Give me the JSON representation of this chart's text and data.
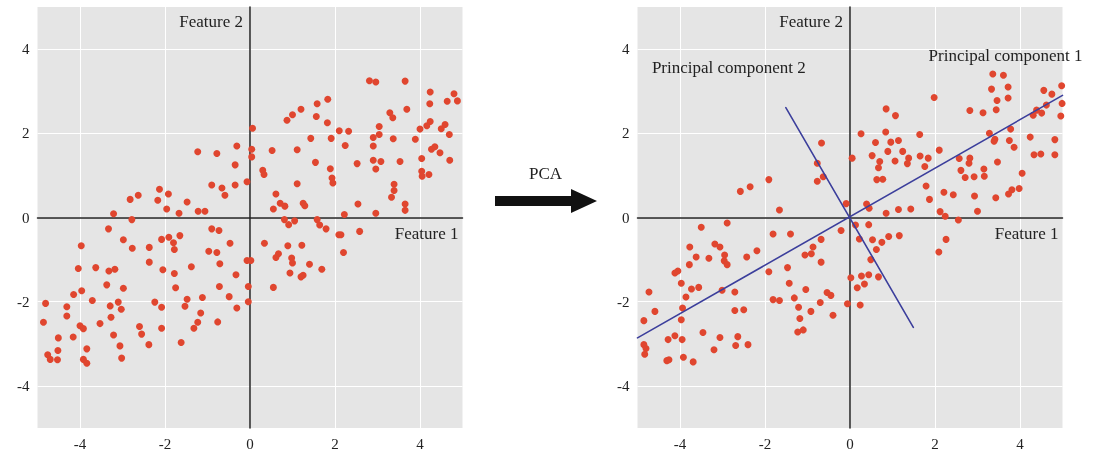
{
  "chart_data": [
    {
      "type": "scatter",
      "xlabel": "Feature 1",
      "ylabel": "Feature 2",
      "color": "#e0462f",
      "marker": "circle",
      "grid": true,
      "xlim": [
        -5,
        5
      ],
      "ylim": [
        -5,
        5
      ],
      "xticks": [
        -4,
        -2,
        0,
        2,
        4
      ],
      "yticks": [
        -4,
        -2,
        0,
        2,
        4
      ],
      "x": [
        -1.23,
        -0.78,
        -0.31,
        -0.35,
        -0.9,
        -0.66,
        -0.59,
        -0.35,
        -0.07,
        -2.13,
        -1.92,
        -2.17,
        -1.96,
        -1.67,
        -1.48,
        -1.22,
        -1.06,
        -2.82,
        -2.63,
        -3.21,
        -2.78,
        -3.33,
        -2.98,
        -2.77,
        -3.97,
        -4.04,
        -3.63,
        -3.32,
        -3.18,
        -3.37,
        -2.98,
        -2.37,
        -2.37,
        -2.08,
        -1.91,
        -1.8,
        -1.78,
        -1.65,
        -2.05,
        -1.78,
        -1.75,
        -1.38,
        -0.9,
        -0.73,
        -0.97,
        -0.78,
        -0.47,
        -0.71,
        -0.07,
        -0.33,
        -0.72,
        -0.04,
        -0.49,
        -0.04,
        -0.31,
        -1.48,
        -1.53,
        -1.12,
        -1.16,
        -1.23,
        -1.32,
        -0.76,
        -1.62,
        -2.24,
        -2.08,
        -2.08,
        -2.6,
        -2.55,
        -2.38,
        -3.06,
        -3.02,
        -3.1,
        -3.03,
        -3.29,
        -3.27,
        -3.21,
        -3.53,
        -3.71,
        -3.96,
        -4.15,
        -4.31,
        -4.31,
        -4.81,
        -4.86,
        -4.51,
        -4.16,
        -4.0,
        -3.92,
        -3.84,
        -4.52,
        -4.76,
        -4.7,
        -4.53,
        -3.92,
        -3.84,
        2.81,
        2.96,
        3.65,
        4.24,
        4.8,
        4.88,
        4.64,
        4.23,
        3.69,
        3.29,
        3.36,
        4.24,
        4.16,
        4.0,
        4.59,
        4.5,
        4.69,
        3.89,
        3.37,
        3.04,
        2.9,
        2.9,
        3.04,
        4.35,
        4.27,
        4.47,
        4.04,
        4.7,
        4.04,
        4.21,
        4.05,
        3.53,
        3.08,
        2.9,
        2.96,
        3.39,
        3.39,
        3.33,
        3.65,
        3.65,
        2.96,
        2.52,
        2.54,
        2.24,
        2.32,
        2.1,
        1.91,
        1.82,
        1.83,
        1.56,
        1.58,
        1.2,
        1.0,
        0.87,
        1.43,
        1.11,
        0.52,
        0.06,
        0.04,
        0.04,
        0.3,
        0.33,
        1.54,
        1.89,
        1.93,
        1.95,
        1.11,
        0.61,
        0.71,
        0.82,
        0.55,
        1.25,
        1.29,
        2.22,
        0.81,
        0.91,
        1.05,
        1.58,
        1.64,
        1.79,
        2.09,
        2.14,
        2.58,
        0.34,
        0.89,
        1.22,
        0.67,
        0.61,
        0.98,
        1.0,
        1.4,
        1.69,
        0.94,
        1.25,
        1.2,
        2.2,
        0.55,
        0.02
      ],
      "values": [
        1.56,
        1.52,
        1.7,
        1.25,
        0.77,
        0.7,
        0.53,
        0.77,
        0.85,
        0.67,
        0.56,
        0.41,
        0.2,
        0.1,
        0.37,
        0.15,
        0.15,
        0.43,
        0.53,
        0.09,
        -0.05,
        -0.27,
        -0.53,
        -0.73,
        -0.67,
        -1.21,
        -1.19,
        -1.27,
        -1.23,
        -1.6,
        -1.68,
        -0.71,
        -1.06,
        -0.52,
        -0.47,
        -0.6,
        -0.76,
        -0.43,
        -1.24,
        -1.33,
        -1.67,
        -1.17,
        -0.27,
        -0.31,
        -0.8,
        -0.83,
        -0.61,
        -1.1,
        -1.02,
        -1.36,
        -1.64,
        -1.64,
        -1.88,
        -2.0,
        -2.15,
        -1.94,
        -2.11,
        -1.9,
        -2.27,
        -2.49,
        -2.63,
        -2.48,
        -2.97,
        -2.01,
        -2.13,
        -2.63,
        -2.59,
        -2.77,
        -3.02,
        -3.05,
        -3.34,
        -2.01,
        -2.18,
        -2.1,
        -2.37,
        -2.79,
        -2.52,
        -1.97,
        -1.74,
        -1.83,
        -2.12,
        -2.34,
        -2.04,
        -2.49,
        -2.86,
        -2.84,
        -2.57,
        -2.64,
        -3.12,
        -3.16,
        -3.26,
        -3.37,
        -3.38,
        -3.37,
        -3.46,
        3.25,
        3.22,
        3.24,
        2.98,
        2.94,
        2.77,
        2.76,
        2.7,
        2.57,
        2.49,
        2.37,
        2.28,
        2.18,
        2.1,
        2.21,
        2.11,
        1.97,
        1.86,
        1.87,
        2.16,
        1.9,
        1.7,
        1.97,
        1.68,
        1.62,
        1.54,
        1.4,
        1.36,
        1.1,
        1.02,
        0.98,
        1.33,
        1.33,
        1.36,
        1.15,
        0.79,
        0.64,
        0.48,
        0.32,
        0.17,
        0.1,
        1.28,
        0.32,
        1.71,
        2.05,
        2.06,
        1.88,
        2.25,
        2.81,
        2.4,
        2.7,
        2.57,
        2.44,
        2.31,
        1.88,
        1.61,
        1.59,
        2.12,
        1.62,
        1.44,
        1.12,
        1.02,
        1.31,
        1.16,
        0.94,
        0.82,
        0.8,
        0.56,
        0.34,
        0.27,
        0.2,
        0.34,
        0.28,
        0.07,
        -0.05,
        -0.17,
        -0.08,
        -0.05,
        -0.18,
        -0.27,
        -0.41,
        -0.41,
        -0.33,
        -0.61,
        -0.67,
        -0.66,
        -0.86,
        -0.95,
        -0.96,
        -1.08,
        -1.11,
        -1.23,
        -1.32,
        -1.37,
        -1.41,
        -0.83,
        -1.66,
        -1.02
      ]
    },
    {
      "type": "scatter",
      "xlabel": "Feature 1",
      "ylabel": "Feature 2",
      "annotations": [
        "PCA"
      ],
      "marker": "circle",
      "grid": true,
      "xlim": [
        -5,
        5
      ],
      "ylim": [
        -5,
        5
      ],
      "xticks": [
        -4,
        -2,
        0,
        2,
        4
      ],
      "yticks": [
        -4,
        -2,
        0,
        2,
        4
      ],
      "series": [
        {
          "type": "scatter",
          "color": "#e0462f",
          "x": [
            -0.67,
            -0.77,
            -0.63,
            -0.77,
            -1.91,
            -2.35,
            -2.58,
            -1.66,
            -0.09,
            -0.21,
            -0.68,
            -0.87,
            -0.91,
            -1.06,
            -0.68,
            -1.81,
            -1.4,
            -3.5,
            -2.89,
            -3.18,
            -3.06,
            -3.77,
            -3.62,
            -3.32,
            -2.95,
            -2.96,
            -2.89,
            -2.43,
            -2.19,
            -3.78,
            -4.05,
            -4.12,
            -3.97,
            -3.73,
            -3.56,
            -3.86,
            -4.73,
            -3.01,
            -2.71,
            -1.91,
            -1.47,
            -1.43,
            -1.04,
            -1.31,
            -1.81,
            -1.66,
            -0.54,
            -0.45,
            -0.7,
            -0.06,
            -1.21,
            -0.92,
            -0.4,
            -1.18,
            -1.23,
            -1.1,
            -3.94,
            -3.97,
            -4.59,
            -4.85,
            -2.71,
            -2.5,
            -3.46,
            -3.06,
            -2.64,
            -2.69,
            -2.4,
            -3.2,
            -4.12,
            -4.28,
            -3.95,
            -4.85,
            -4.8,
            -4.83,
            -4.31,
            -4.26,
            -3.92,
            -3.69,
            3.36,
            3.61,
            3.72,
            3.33,
            3.46,
            3.72,
            3.44,
            3.13,
            2.82,
            1.98,
            4.56,
            4.75,
            4.98,
            4.99,
            4.62,
            4.39,
            4.31,
            4.51,
            4.96,
            3.78,
            3.28,
            3.41,
            3.39,
            3.75,
            3.86,
            4.24,
            4.82,
            4.33,
            4.49,
            4.82,
            3.47,
            4.05,
            3.98,
            3.81,
            3.73,
            3.43,
            2.93,
            3.0,
            3.16,
            3.15,
            2.92,
            2.71,
            2.61,
            2.57,
            2.8,
            2.82,
            2.43,
            2.21,
            2.1,
            2.55,
            2.24,
            2.12,
            2.26,
            2.09,
            1.87,
            1.79,
            1.84,
            1.76,
            1.65,
            1.64,
            1.38,
            1.35,
            1.24,
            1.14,
            1.06,
            1.07,
            0.85,
            0.84,
            0.89,
            0.96,
            0.6,
            0.52,
            0.7,
            0.67,
            0.63,
            0.77,
            0.26,
            0.05,
            0.39,
            0.45,
            0.85,
            1.14,
            1.43,
            0.13,
            0.44,
            0.22,
            0.53,
            0.75,
            0.91,
            1.16,
            0.62,
            0.49,
            0.02,
            0.27,
            0.44,
            0.67,
            0.17,
            0.34,
            0.24
          ],
          "values": [
            1.77,
            1.29,
            0.97,
            0.86,
            0.9,
            0.73,
            0.62,
            0.18,
            0.33,
            -0.31,
            -0.52,
            -0.7,
            -0.86,
            -0.89,
            -1.06,
            -0.39,
            -0.39,
            -0.23,
            -0.13,
            -0.63,
            -0.7,
            -0.7,
            -0.94,
            -0.97,
            -0.89,
            -1.03,
            -1.12,
            -0.94,
            -0.79,
            -1.12,
            -1.27,
            -1.32,
            -1.56,
            -1.7,
            -1.66,
            -1.89,
            -1.77,
            -1.73,
            -1.77,
            -1.29,
            -1.19,
            -1.56,
            -1.71,
            -1.91,
            -1.95,
            -1.97,
            -1.78,
            -1.85,
            -2.02,
            -2.05,
            -2.13,
            -2.23,
            -2.32,
            -2.4,
            -2.72,
            -2.67,
            -2.15,
            -2.43,
            -2.23,
            -2.45,
            -2.21,
            -2.19,
            -2.73,
            -2.85,
            -2.83,
            -3.04,
            -3.02,
            -3.14,
            -2.81,
            -2.9,
            -2.9,
            -3.02,
            -3.11,
            -3.25,
            -3.4,
            -3.38,
            -3.32,
            -3.43,
            3.41,
            3.38,
            3.1,
            3.05,
            2.78,
            2.84,
            2.56,
            2.49,
            2.54,
            2.85,
            3.02,
            2.93,
            3.13,
            2.71,
            2.67,
            2.55,
            2.43,
            2.48,
            2.41,
            2.1,
            2.0,
            1.86,
            1.81,
            1.83,
            1.67,
            1.91,
            1.85,
            1.49,
            1.51,
            1.49,
            1.32,
            1.05,
            0.69,
            0.66,
            0.56,
            0.47,
            0.51,
            0.15,
            0.98,
            1.15,
            0.97,
            0.95,
            1.12,
            1.4,
            1.29,
            1.41,
            0.54,
            0.6,
            1.6,
            -0.06,
            0.03,
            0.14,
            -0.52,
            -0.82,
            0.43,
            0.75,
            1.41,
            1.21,
            1.46,
            1.97,
            1.41,
            1.28,
            1.57,
            1.83,
            1.34,
            2.42,
            2.58,
            2.03,
            1.57,
            1.79,
            1.78,
            1.47,
            1.33,
            1.18,
            0.9,
            0.91,
            1.99,
            1.41,
            0.32,
            0.22,
            0.1,
            0.19,
            0.2,
            -0.18,
            -0.17,
            -0.51,
            -0.53,
            -0.59,
            -0.45,
            -0.43,
            -0.76,
            -1.0,
            -1.43,
            -1.39,
            -1.36,
            -1.41,
            -1.67,
            -1.58,
            -2.08
          ]
        },
        {
          "type": "line",
          "name": "Principal component 1",
          "color": "#3c3f9c",
          "marker": "none",
          "line_style": "solid",
          "x": [
            -5,
            5
          ],
          "values": [
            -2.86,
            2.9
          ]
        },
        {
          "type": "line",
          "name": "Principal component 2",
          "color": "#3c3f9c",
          "marker": "none",
          "line_style": "solid",
          "x": [
            -1.51,
            1.49
          ],
          "values": [
            2.61,
            -2.61
          ]
        }
      ]
    }
  ]
}
